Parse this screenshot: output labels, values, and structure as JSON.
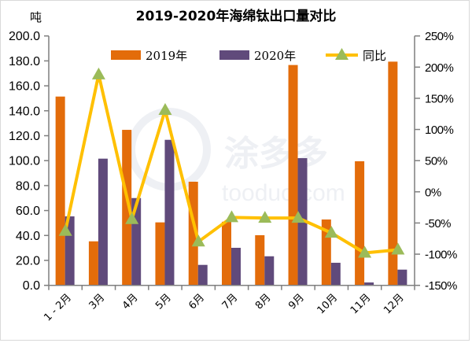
{
  "chart_data": {
    "type": "bar+line",
    "title": "2019-2020年海绵钛出口量对比",
    "ylabel": "吨",
    "ylim": [
      0,
      200
    ],
    "y2lim": [
      -150,
      250
    ],
    "yticks": [
      "0.0",
      "20.0",
      "40.0",
      "60.0",
      "80.0",
      "100.0",
      "120.0",
      "140.0",
      "160.0",
      "180.0",
      "200.0"
    ],
    "y2ticks": [
      "-150%",
      "-100%",
      "-50%",
      "0%",
      "50%",
      "100%",
      "150%",
      "200%",
      "250%"
    ],
    "categories": [
      "1 - 2月",
      "3月",
      "4月",
      "5月",
      "6月",
      "7月",
      "8月",
      "9月",
      "10月",
      "11月",
      "12月"
    ],
    "series": [
      {
        "name": "2019年",
        "type": "bar",
        "color": "#E36C0A",
        "values": [
          151.4,
          35.3,
          124.7,
          50.5,
          83.1,
          51.0,
          40.2,
          176.7,
          52.8,
          99.5,
          179.4
        ]
      },
      {
        "name": "2020年",
        "type": "bar",
        "color": "#604A7B",
        "values": [
          55.3,
          101.6,
          70.0,
          116.7,
          16.4,
          30.1,
          23.3,
          102.0,
          18.1,
          2.3,
          12.6
        ]
      },
      {
        "name": "同比",
        "type": "line",
        "axis": "right",
        "color": "#FFC000",
        "marker_color": "#9BBB59",
        "values": [
          -63,
          188,
          -44,
          131,
          -80,
          -41,
          -42,
          -42,
          -66,
          -98,
          -93
        ]
      }
    ],
    "legend_position": "top",
    "grid": false
  },
  "watermark": {
    "cn": "涂多多",
    "en": "tooduo.com"
  }
}
